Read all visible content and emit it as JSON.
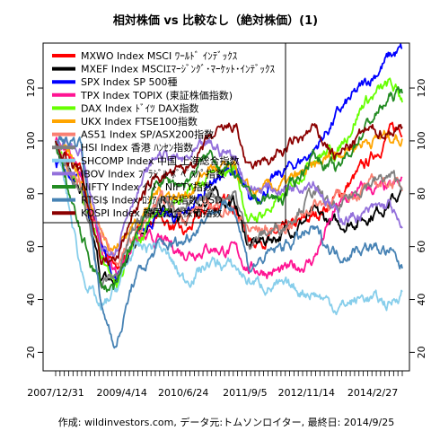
{
  "chart_data": {
    "type": "line",
    "title": "相対株価 vs 比較なし（絶対株価）(1)",
    "caption": "作成: wildinvestors.com, データ元:トムソンロイター, 最終日: 2014/9/25",
    "x_tick_labels": [
      "2007/12/31",
      "2009/4/14",
      "2010/6/24",
      "2011/9/5",
      "2012/11/14",
      "2014/2/27"
    ],
    "x_range": [
      "2007-12-31",
      "2014-09-25"
    ],
    "y_ticks": [
      20,
      40,
      60,
      80,
      100,
      120
    ],
    "ylim": [
      13,
      137
    ],
    "grid": false,
    "legend_position": "top-left",
    "legend_entries": [
      "MXWO Index MSCI ﾜｰﾙﾄﾞ ｲﾝﾃﾞｯｸｽ",
      "MXEF Index MSCIｴﾏｰｼﾞﾝｸﾞ･ﾏｰｹｯﾄ･ｲﾝﾃﾞｯｸｽ",
      "SPX Index SP 500種",
      "TPX Index TOPIX (東証株価指数)",
      "DAX Index ﾄﾞｲﾂ DAX指数",
      "UKX Index FTSE100指数",
      "AS51 Index SP/ASX200指数",
      "HSI Index 香港 ﾊﾝｾﾝ指数",
      "SHCOMP Index 中国 上海総合指数",
      "IBOV Index ﾌﾞﾗｼﾞﾙ ﾎﾞﾍﾞｽﾊﾟ指数",
      "NIFTY Index ｲﾝﾄﾞ NIFTY指数",
      "RTSI$ Index ﾛｼｱ RTS指数 USD",
      "KOSPI Index 韓国総合株価指数"
    ],
    "x_key": [
      "2007-12-31",
      "2008-06-30",
      "2008-11-20",
      "2009-03-09",
      "2009-06-30",
      "2009-12-31",
      "2010-06-30",
      "2010-12-31",
      "2011-06-30",
      "2011-10-03",
      "2012-06-01",
      "2012-12-31",
      "2013-06-24",
      "2013-12-31",
      "2014-06-30",
      "2014-09-25"
    ],
    "series": [
      {
        "name": "MXWO Index MSCI ﾜｰﾙﾄﾞ ｲﾝﾃﾞｯｸｽ",
        "color": "#ff0000",
        "values": [
          100,
          87,
          62,
          50,
          62,
          72,
          64,
          75,
          77,
          62,
          65,
          71,
          79,
          90,
          103,
          105
        ]
      },
      {
        "name": "MXEF Index MSCIｴﾏｰｼﾞﾝｸﾞ･ﾏｰｹｯﾄ･ｲﾝﾃﾞｯｸｽ",
        "color": "#000000",
        "values": [
          100,
          80,
          48,
          46,
          62,
          75,
          68,
          80,
          76,
          60,
          65,
          72,
          68,
          71,
          77,
          80
        ]
      },
      {
        "name": "SPX Index SP 500種",
        "color": "#0000ff",
        "values": [
          92,
          85,
          60,
          48,
          62,
          73,
          70,
          85,
          89,
          76,
          88,
          96,
          110,
          121,
          132,
          134
        ]
      },
      {
        "name": "TPX Index TOPIX (東証株価指数)",
        "color": "#ff1493",
        "values": [
          100,
          89,
          58,
          50,
          62,
          62,
          58,
          60,
          58,
          52,
          50,
          55,
          75,
          82,
          81,
          84
        ]
      },
      {
        "name": "DAX Index ﾄﾞｲﾂ DAX指数",
        "color": "#66ff00",
        "values": [
          100,
          80,
          55,
          46,
          60,
          74,
          78,
          86,
          90,
          69,
          78,
          95,
          96,
          115,
          121,
          116
        ]
      },
      {
        "name": "UKX Index FTSE100指数",
        "color": "#ffa500",
        "values": [
          100,
          87,
          65,
          60,
          68,
          81,
          79,
          90,
          88,
          80,
          83,
          89,
          96,
          100,
          102,
          101
        ]
      },
      {
        "name": "AS51 Index SP/ASX200指数",
        "color": "#fa8072",
        "values": [
          100,
          83,
          64,
          54,
          62,
          77,
          72,
          76,
          73,
          66,
          67,
          76,
          78,
          82,
          85,
          82
        ]
      },
      {
        "name": "HSI Index 香港 ﾊﾝｾﾝ指数",
        "color": "#808080",
        "values": [
          100,
          80,
          46,
          49,
          66,
          80,
          73,
          80,
          79,
          62,
          68,
          81,
          73,
          84,
          86,
          84
        ]
      },
      {
        "name": "SHCOMP Index 中国 上海総合指数",
        "color": "#87ceeb",
        "values": [
          100,
          51,
          35,
          44,
          58,
          61,
          47,
          54,
          52,
          47,
          44,
          43,
          37,
          41,
          38,
          44
        ]
      },
      {
        "name": "IBOV Index ﾌﾞﾗｼﾞﾙ ﾎﾞﾍﾞｽﾊﾟ指数",
        "color": "#9370db",
        "values": [
          100,
          96,
          58,
          61,
          79,
          95,
          92,
          98,
          94,
          82,
          82,
          86,
          71,
          72,
          76,
          64
        ]
      },
      {
        "name": "NIFTY Index ｲﾝﾄﾞ NIFTY指数",
        "color": "#228b22",
        "values": [
          100,
          63,
          45,
          44,
          62,
          85,
          84,
          95,
          87,
          78,
          78,
          95,
          88,
          105,
          116,
          119
        ]
      },
      {
        "name": "RTSI$ Index ﾛｼｱ RTS指数 USD",
        "color": "#4682b4",
        "values": [
          100,
          100,
          36,
          23,
          46,
          60,
          62,
          74,
          75,
          52,
          60,
          66,
          57,
          60,
          58,
          51
        ]
      },
      {
        "name": "KOSPI Index 韓国総合株価指数",
        "color": "#8b0000",
        "values": [
          100,
          87,
          55,
          55,
          73,
          87,
          88,
          100,
          106,
          88,
          96,
          104,
          94,
          103,
          104,
          105
        ]
      }
    ]
  }
}
